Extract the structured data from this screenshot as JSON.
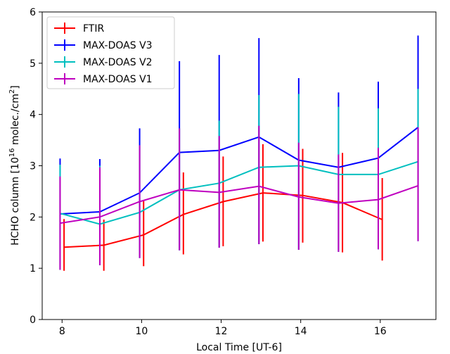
{
  "chart_data": {
    "type": "line",
    "xlabel": "Local Time [UT-6]",
    "ylabel_prefix": "HCHO column [10",
    "ylabel_exp": "16",
    "ylabel_mid": " molec./cm",
    "ylabel_exp2": "2",
    "ylabel_suffix": "]",
    "xlim": [
      7.5,
      17.4
    ],
    "ylim": [
      0,
      6
    ],
    "xticks": [
      8,
      10,
      12,
      14,
      16
    ],
    "yticks": [
      0,
      1,
      2,
      3,
      4,
      5,
      6
    ],
    "legend_position": "top-left",
    "series": [
      {
        "name": "FTIR",
        "color": "#ff0000",
        "x": [
          8.05,
          9.05,
          10.05,
          11.05,
          12.05,
          13.05,
          14.05,
          15.05,
          16.05
        ],
        "y": [
          1.41,
          1.45,
          1.65,
          2.05,
          2.3,
          2.47,
          2.42,
          2.28,
          1.95
        ],
        "err_low": [
          0.95,
          0.95,
          1.04,
          1.27,
          1.43,
          1.52,
          1.5,
          1.31,
          1.15
        ],
        "err_high": [
          1.96,
          1.95,
          2.33,
          2.87,
          3.18,
          3.42,
          3.33,
          3.25,
          2.76
        ]
      },
      {
        "name": "MAX-DOAS V3",
        "color": "#0000ff",
        "x": [
          7.95,
          8.95,
          9.95,
          10.95,
          11.95,
          12.95,
          13.95,
          14.95,
          15.95,
          16.95
        ],
        "y": [
          2.06,
          2.1,
          2.47,
          3.26,
          3.3,
          3.56,
          3.11,
          2.97,
          3.15,
          3.75
        ],
        "err_low": [
          0.97,
          1.06,
          1.2,
          1.35,
          1.4,
          1.47,
          1.36,
          1.32,
          1.37,
          1.53
        ],
        "err_high": [
          3.14,
          3.13,
          3.73,
          5.04,
          5.16,
          5.49,
          4.71,
          4.43,
          4.64,
          5.54
        ]
      },
      {
        "name": "MAX-DOAS V2",
        "color": "#00bfbf",
        "x": [
          7.95,
          8.95,
          9.95,
          10.95,
          11.95,
          12.95,
          13.95,
          14.95,
          15.95,
          16.95
        ],
        "y": [
          2.07,
          1.86,
          2.09,
          2.53,
          2.66,
          2.97,
          3.0,
          2.83,
          2.83,
          3.08
        ],
        "err_low": [
          0.97,
          1.06,
          1.2,
          1.35,
          1.4,
          1.47,
          1.36,
          1.32,
          1.37,
          1.53
        ],
        "err_high": [
          3.02,
          3.0,
          3.4,
          3.73,
          3.88,
          4.38,
          4.4,
          4.15,
          4.12,
          4.5
        ]
      },
      {
        "name": "MAX-DOAS V1",
        "color": "#bf00bf",
        "x": [
          7.95,
          8.95,
          9.95,
          10.95,
          11.95,
          12.95,
          13.95,
          14.95,
          15.95,
          16.95
        ],
        "y": [
          1.88,
          2.0,
          2.3,
          2.53,
          2.48,
          2.6,
          2.39,
          2.27,
          2.34,
          2.61
        ],
        "err_low": [
          0.97,
          1.06,
          1.2,
          1.35,
          1.4,
          1.47,
          1.36,
          1.32,
          1.37,
          1.53
        ],
        "err_high": [
          2.79,
          2.97,
          3.4,
          3.73,
          3.58,
          3.78,
          3.45,
          3.22,
          3.35,
          3.75
        ]
      }
    ]
  }
}
